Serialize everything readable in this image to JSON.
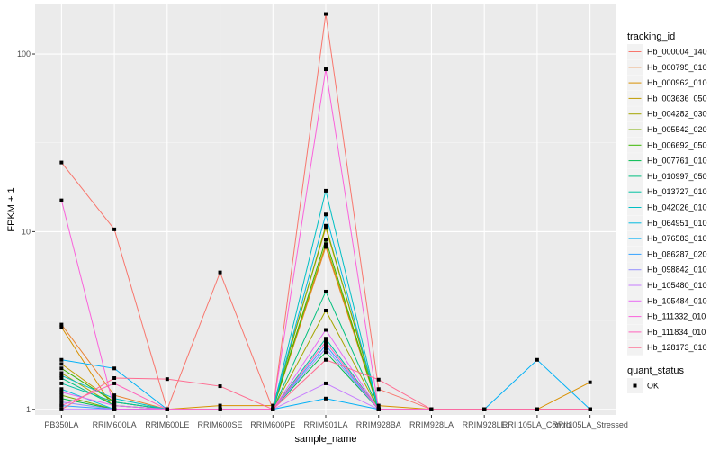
{
  "chart_data": {
    "type": "line",
    "title": "",
    "xlabel": "sample_name",
    "ylabel": "FPKM + 1",
    "y_scale": "log10",
    "ylim": [
      0.93,
      190
    ],
    "y_ticks": [
      1,
      10,
      100
    ],
    "y_tick_labels": [
      "1",
      "10",
      "100"
    ],
    "grid": true,
    "legend_placement": "right",
    "categories": [
      "PB350LA",
      "RRIM600LA",
      "RRIM600LE",
      "RRIM600SE",
      "RRIM600PE",
      "RRIM901LA",
      "RRIM928BA",
      "RRIM928LA",
      "RRIM928LE",
      "RRII105LA_Control",
      "RRII105LA_Stressed"
    ],
    "legend_color_title": "tracking_id",
    "legend_point_title": "quant_status",
    "legend_point_label": "OK",
    "series": [
      {
        "name": "Hb_000004_140",
        "color": "#F8766D",
        "values": [
          24.5,
          10.3,
          1.0,
          5.9,
          1.0,
          168,
          1.3,
          1.0,
          1.0,
          1.0,
          1.0
        ]
      },
      {
        "name": "Hb_000795_010",
        "color": "#EA8331",
        "values": [
          3.0,
          1.2,
          1.0,
          1.0,
          1.0,
          8.2,
          1.0,
          1.0,
          1.0,
          1.0,
          1.0
        ]
      },
      {
        "name": "Hb_000962_010",
        "color": "#D89000",
        "values": [
          2.9,
          1.0,
          1.0,
          1.05,
          1.05,
          10.5,
          1.05,
          1.0,
          1.0,
          1.0,
          1.42
        ]
      },
      {
        "name": "Hb_003636_050",
        "color": "#C09B00",
        "values": [
          1.8,
          1.1,
          1.0,
          1.0,
          1.0,
          8.5,
          1.0,
          1.0,
          1.0,
          1.0,
          1.0
        ]
      },
      {
        "name": "Hb_004282_030",
        "color": "#A3A500",
        "values": [
          1.6,
          1.05,
          1.0,
          1.0,
          1.0,
          3.6,
          1.0,
          1.0,
          1.0,
          1.0,
          1.0
        ]
      },
      {
        "name": "Hb_005542_020",
        "color": "#7CAE00",
        "values": [
          1.2,
          1.0,
          1.0,
          1.0,
          1.0,
          10.8,
          1.0,
          1.0,
          1.0,
          1.0,
          1.0
        ]
      },
      {
        "name": "Hb_006692_050",
        "color": "#39B600",
        "values": [
          1.7,
          1.1,
          1.0,
          1.0,
          1.0,
          9.0,
          1.0,
          1.0,
          1.0,
          1.0,
          1.0
        ]
      },
      {
        "name": "Hb_007761_010",
        "color": "#00BB4E",
        "values": [
          1.15,
          1.0,
          1.0,
          1.0,
          1.0,
          2.1,
          1.0,
          1.0,
          1.0,
          1.0,
          1.0
        ]
      },
      {
        "name": "Hb_010997_050",
        "color": "#00BF7D",
        "values": [
          1.5,
          1.05,
          1.0,
          1.0,
          1.0,
          4.6,
          1.0,
          1.0,
          1.0,
          1.0,
          1.0
        ]
      },
      {
        "name": "Hb_013727_010",
        "color": "#00C1A3",
        "values": [
          1.4,
          1.1,
          1.0,
          1.0,
          1.0,
          2.5,
          1.0,
          1.0,
          1.0,
          1.0,
          1.0
        ]
      },
      {
        "name": "Hb_042026_010",
        "color": "#00BFC4",
        "values": [
          1.55,
          1.15,
          1.0,
          1.0,
          1.0,
          17.0,
          1.0,
          1.0,
          1.0,
          1.0,
          1.0
        ]
      },
      {
        "name": "Hb_064951_010",
        "color": "#00BAE0",
        "values": [
          1.3,
          1.0,
          1.0,
          1.0,
          1.0,
          12.5,
          1.0,
          1.0,
          1.0,
          1.0,
          1.0
        ]
      },
      {
        "name": "Hb_076583_010",
        "color": "#00B0F6",
        "values": [
          1.9,
          1.7,
          1.0,
          1.0,
          1.0,
          1.15,
          1.0,
          1.0,
          1.0,
          1.9,
          1.0
        ]
      },
      {
        "name": "Hb_086287_020",
        "color": "#35A2FF",
        "values": [
          1.05,
          1.0,
          1.0,
          1.0,
          1.0,
          2.3,
          1.0,
          1.0,
          1.0,
          1.0,
          1.0
        ]
      },
      {
        "name": "Hb_098842_010",
        "color": "#9590FF",
        "values": [
          1.1,
          1.0,
          1.0,
          1.0,
          1.0,
          2.2,
          1.0,
          1.0,
          1.0,
          1.0,
          1.0
        ]
      },
      {
        "name": "Hb_105480_010",
        "color": "#C77CFF",
        "values": [
          1.0,
          1.0,
          1.0,
          1.0,
          1.0,
          1.4,
          1.0,
          1.0,
          1.0,
          1.0,
          1.0
        ]
      },
      {
        "name": "Hb_105484_010",
        "color": "#E76BF3",
        "values": [
          1.25,
          1.05,
          1.0,
          1.0,
          1.0,
          2.8,
          1.0,
          1.0,
          1.0,
          1.0,
          1.0
        ]
      },
      {
        "name": "Hb_111332_010",
        "color": "#FA62DB",
        "values": [
          15.0,
          1.0,
          1.0,
          1.0,
          1.0,
          82.0,
          1.0,
          1.0,
          1.0,
          1.0,
          1.0
        ]
      },
      {
        "name": "Hb_111834_010",
        "color": "#FF62BC",
        "values": [
          1.05,
          1.4,
          1.0,
          1.0,
          1.0,
          2.4,
          1.0,
          1.0,
          1.0,
          1.0,
          1.0
        ]
      },
      {
        "name": "Hb_128173_010",
        "color": "#FF6C91",
        "values": [
          1.0,
          1.5,
          1.48,
          1.35,
          1.0,
          1.9,
          1.47,
          1.0,
          1.0,
          1.0,
          1.0
        ]
      }
    ]
  }
}
